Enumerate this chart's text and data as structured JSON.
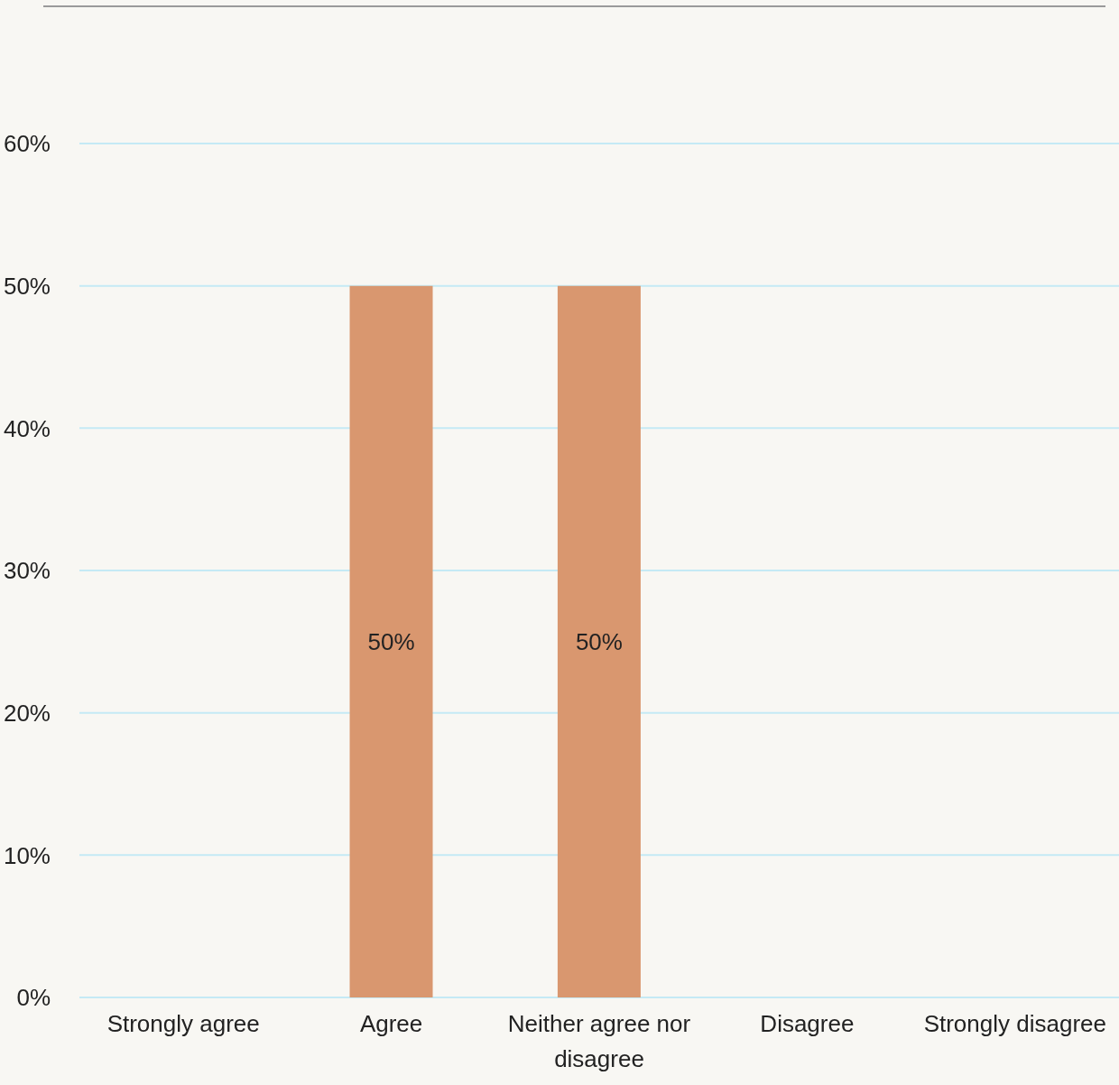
{
  "chart_data": {
    "type": "bar",
    "categories": [
      "Strongly agree",
      "Agree",
      "Neither agree nor disagree",
      "Disagree",
      "Strongly disagree"
    ],
    "values": [
      0,
      50,
      50,
      0,
      0
    ],
    "value_labels": [
      null,
      "50%",
      "50%",
      null,
      null
    ],
    "color": "#d9976f",
    "ylim": [
      0,
      60
    ],
    "yticks": [
      {
        "value": 0,
        "label": "0%"
      },
      {
        "value": 10,
        "label": "10%"
      },
      {
        "value": 20,
        "label": "20%"
      },
      {
        "value": 30,
        "label": "30%"
      },
      {
        "value": 40,
        "label": "40%"
      },
      {
        "value": 50,
        "label": "50%"
      },
      {
        "value": 60,
        "label": "60%"
      }
    ],
    "grid": "y",
    "legend": false
  }
}
